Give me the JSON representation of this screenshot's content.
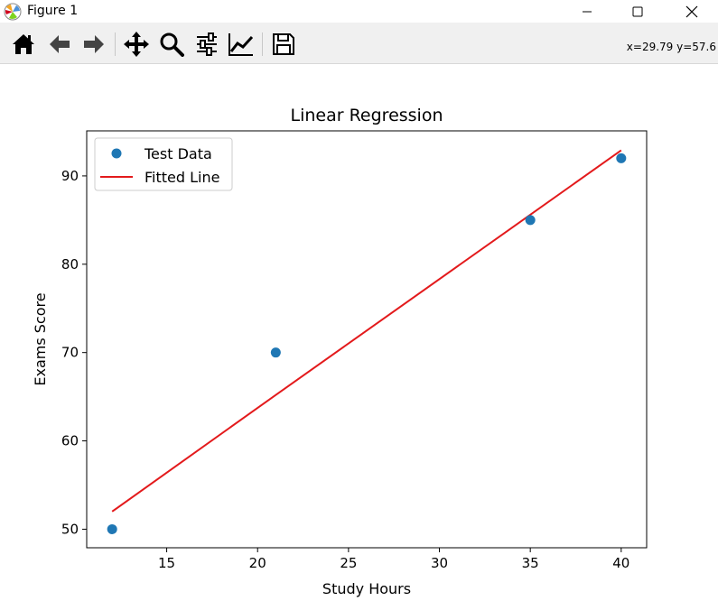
{
  "window": {
    "title": "Figure 1",
    "icon": "matplotlib-icon",
    "controls": [
      "minimize-icon",
      "maximize-icon",
      "close-icon"
    ]
  },
  "toolbar": {
    "tools": [
      "home-icon",
      "back-arrow-icon",
      "forward-arrow-icon",
      "pan-icon",
      "zoom-icon",
      "configure-subplots-icon",
      "edit-axis-icon",
      "save-icon"
    ],
    "coords": "x=29.79 y=57.6"
  },
  "chart_data": {
    "type": "scatter",
    "title": "Linear Regression",
    "xlabel": "Study Hours",
    "ylabel": "Exams Score",
    "xlim": [
      10.6,
      41.4
    ],
    "ylim": [
      47.9,
      95.1
    ],
    "xticks": [
      15,
      20,
      25,
      30,
      35,
      40
    ],
    "yticks": [
      50,
      60,
      70,
      80,
      90
    ],
    "grid": false,
    "legend_position": "upper left",
    "series": [
      {
        "name": "Test Data",
        "kind": "scatter",
        "color": "#1f77b4",
        "x": [
          12,
          21,
          35,
          40
        ],
        "y": [
          50,
          70,
          85,
          92
        ]
      },
      {
        "name": "Fitted Line",
        "kind": "line",
        "color": "#e31a1c",
        "x": [
          12,
          21,
          35,
          40
        ],
        "y": [
          52.0,
          65.2,
          85.6,
          92.9
        ]
      }
    ]
  }
}
